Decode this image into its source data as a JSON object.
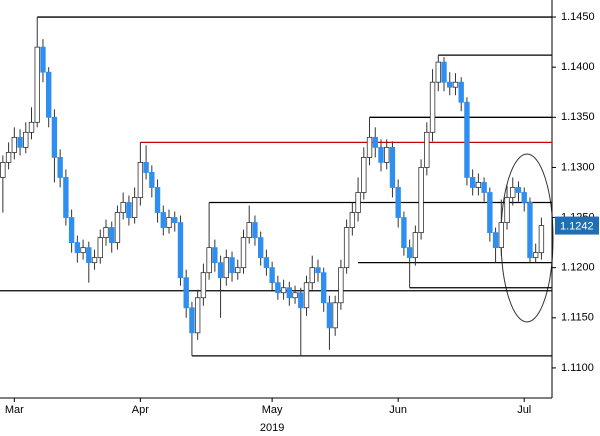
{
  "chart_data": {
    "type": "candlestick",
    "up_color": "#ffffff",
    "down_color": "#2f8ff0",
    "outline_color": "#333333",
    "open": [
      1.129,
      1.1305,
      1.1315,
      1.133,
      1.132,
      1.1335,
      1.1345,
      1.142,
      1.1395,
      1.135,
      1.131,
      1.129,
      1.125,
      1.1225,
      1.1215,
      1.122,
      1.1205,
      1.121,
      1.123,
      1.124,
      1.1225,
      1.1255,
      1.1265,
      1.125,
      1.127,
      1.1305,
      1.1295,
      1.128,
      1.1255,
      1.124,
      1.125,
      1.1245,
      1.119,
      1.116,
      1.1135,
      1.117,
      1.1195,
      1.122,
      1.1205,
      1.119,
      1.121,
      1.1195,
      1.12,
      1.123,
      1.1245,
      1.123,
      1.121,
      1.12,
      1.1185,
      1.1175,
      1.118,
      1.117,
      1.1175,
      1.116,
      1.1185,
      1.12,
      1.1195,
      1.1165,
      1.114,
      1.1165,
      1.12,
      1.124,
      1.1255,
      1.1275,
      1.131,
      1.133,
      1.132,
      1.1305,
      1.132,
      1.128,
      1.125,
      1.122,
      1.121,
      1.1235,
      1.13,
      1.1335,
      1.1385,
      1.1405,
      1.1385,
      1.138,
      1.1385,
      1.1365,
      1.129,
      1.128,
      1.1285,
      1.1275,
      1.1235,
      1.122,
      1.1245,
      1.127,
      1.128,
      1.1275,
      1.1265,
      1.121,
      1.1215
    ],
    "high": [
      1.1312,
      1.1325,
      1.134,
      1.1338,
      1.1345,
      1.136,
      1.145,
      1.1428,
      1.14,
      1.1358,
      1.1318,
      1.1298,
      1.1258,
      1.1232,
      1.1228,
      1.1226,
      1.1218,
      1.1238,
      1.1248,
      1.1246,
      1.1262,
      1.1275,
      1.1272,
      1.128,
      1.1325,
      1.1322,
      1.1302,
      1.1288,
      1.1262,
      1.1258,
      1.1256,
      1.1252,
      1.1198,
      1.1166,
      1.1178,
      1.1204,
      1.1265,
      1.1228,
      1.1212,
      1.1218,
      1.1216,
      1.1208,
      1.1238,
      1.1262,
      1.1252,
      1.1236,
      1.1218,
      1.1206,
      1.1192,
      1.1188,
      1.1186,
      1.1182,
      1.118,
      1.1192,
      1.1212,
      1.1208,
      1.12,
      1.1172,
      1.1172,
      1.1208,
      1.1248,
      1.1265,
      1.129,
      1.132,
      1.135,
      1.134,
      1.1328,
      1.1328,
      1.1326,
      1.1288,
      1.1256,
      1.1228,
      1.1242,
      1.1308,
      1.1345,
      1.1398,
      1.1412,
      1.141,
      1.1395,
      1.1394,
      1.139,
      1.137,
      1.1298,
      1.1294,
      1.129,
      1.128,
      1.124,
      1.1268,
      1.1282,
      1.129,
      1.1286,
      1.128,
      1.127,
      1.1224,
      1.125
    ],
    "low": [
      1.1255,
      1.1298,
      1.1308,
      1.1312,
      1.1314,
      1.1328,
      1.134,
      1.1385,
      1.134,
      1.1285,
      1.128,
      1.1242,
      1.1215,
      1.1205,
      1.1208,
      1.1185,
      1.1198,
      1.1204,
      1.1222,
      1.1215,
      1.1218,
      1.1248,
      1.1242,
      1.1244,
      1.1262,
      1.1288,
      1.127,
      1.1245,
      1.1232,
      1.1234,
      1.1236,
      1.1182,
      1.115,
      1.1112,
      1.1128,
      1.1162,
      1.1188,
      1.1196,
      1.115,
      1.1182,
      1.1186,
      1.1188,
      1.1194,
      1.1224,
      1.1222,
      1.1202,
      1.1192,
      1.1176,
      1.1168,
      1.1168,
      1.1162,
      1.1164,
      1.1112,
      1.1152,
      1.1178,
      1.1186,
      1.1156,
      1.1118,
      1.1132,
      1.1158,
      1.1194,
      1.1232,
      1.1246,
      1.1268,
      1.1302,
      1.131,
      1.1296,
      1.1298,
      1.127,
      1.124,
      1.1212,
      1.118,
      1.1202,
      1.1228,
      1.1292,
      1.1326,
      1.1376,
      1.1376,
      1.1372,
      1.1372,
      1.1356,
      1.1282,
      1.1272,
      1.1272,
      1.1266,
      1.1226,
      1.1205,
      1.1212,
      1.1238,
      1.1262,
      1.1266,
      1.1256,
      1.1205,
      1.1205,
      1.1208
    ],
    "close": [
      1.1305,
      1.1315,
      1.133,
      1.132,
      1.1335,
      1.1345,
      1.142,
      1.1395,
      1.135,
      1.131,
      1.129,
      1.125,
      1.1225,
      1.1215,
      1.122,
      1.1205,
      1.121,
      1.123,
      1.124,
      1.1225,
      1.1255,
      1.1265,
      1.125,
      1.127,
      1.1305,
      1.1295,
      1.128,
      1.1255,
      1.124,
      1.125,
      1.1245,
      1.119,
      1.116,
      1.1135,
      1.117,
      1.1195,
      1.122,
      1.1205,
      1.119,
      1.121,
      1.1195,
      1.12,
      1.123,
      1.1245,
      1.123,
      1.121,
      1.12,
      1.1185,
      1.1175,
      1.118,
      1.117,
      1.1175,
      1.116,
      1.1185,
      1.12,
      1.1195,
      1.1165,
      1.114,
      1.1165,
      1.12,
      1.124,
      1.1255,
      1.1275,
      1.131,
      1.133,
      1.132,
      1.1305,
      1.132,
      1.128,
      1.125,
      1.122,
      1.121,
      1.1235,
      1.13,
      1.1335,
      1.1385,
      1.1405,
      1.1385,
      1.138,
      1.1385,
      1.1365,
      1.129,
      1.128,
      1.1285,
      1.1275,
      1.1235,
      1.122,
      1.1245,
      1.127,
      1.128,
      1.1275,
      1.1265,
      1.121,
      1.1215,
      1.1242
    ],
    "xlim": [
      -0.5,
      95.5
    ],
    "xticks": [
      {
        "value": 2,
        "label": "Mar"
      },
      {
        "value": 24,
        "label": "Apr"
      },
      {
        "value": 47,
        "label": "May"
      },
      {
        "value": 69,
        "label": "Jun"
      },
      {
        "value": 91,
        "label": "Jul"
      }
    ],
    "x_sublabel": "2019",
    "ylim": [
      1.107,
      1.1467
    ],
    "yticks": [
      {
        "value": 1.11,
        "label": "1.1100"
      },
      {
        "value": 1.115,
        "label": "1.1150"
      },
      {
        "value": 1.12,
        "label": "1.1200"
      },
      {
        "value": 1.125,
        "label": "1.1250"
      },
      {
        "value": 1.13,
        "label": "1.1300"
      },
      {
        "value": 1.135,
        "label": "1.1350"
      },
      {
        "value": 1.14,
        "label": "1.1400"
      },
      {
        "value": 1.145,
        "label": "1.1450"
      }
    ],
    "levels": [
      {
        "value": 1.145,
        "from": 6,
        "color": "#000000"
      },
      {
        "value": 1.1412,
        "from": 76,
        "color": "#000000"
      },
      {
        "value": 1.135,
        "from": 64,
        "color": "#000000"
      },
      {
        "value": 1.1325,
        "from": 24,
        "color": "#cc0000"
      },
      {
        "value": 1.1265,
        "from": 36,
        "color": "#000000"
      },
      {
        "value": 1.1205,
        "from": 62,
        "color": "#000000"
      },
      {
        "value": 1.118,
        "from": 71,
        "color": "#000000"
      },
      {
        "value": 1.1177,
        "from": -0.5,
        "color": "#000000"
      },
      {
        "value": 1.1112,
        "from": 33,
        "color": "#000000"
      }
    ],
    "last_price_color": "#1f6fb5"
  }
}
